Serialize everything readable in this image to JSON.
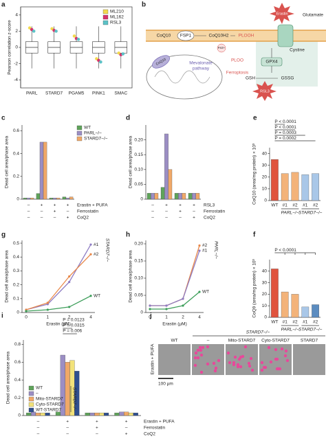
{
  "panel_labels": [
    "a",
    "b",
    "c",
    "d",
    "e",
    "f",
    "g",
    "h",
    "i",
    "j"
  ],
  "diagram": {
    "erastin": "Erastin",
    "glutamate": "Glutamate",
    "coq10": "CoQ10",
    "fsp1": "FSP1",
    "coq10h2": "CoQ10H2",
    "plooh": "PLOOH",
    "mito_coq10": "CoQ10",
    "mevalonate": [
      "Mevalonate",
      "pathway"
    ],
    "fe": "Fe2+",
    "ploo": "PLOO",
    "ferroptosis": "Ferroptosis",
    "gpx4": "GPX4",
    "cystine": "Cystine",
    "gsh": "GSH",
    "gssg": "GSSG",
    "rsl3": "RSL3"
  },
  "micrographs": {
    "group_label": "STARD7−/−",
    "columns": [
      "WT",
      "–",
      "Mito-STARD7",
      "Cyto-STARD7",
      "STARD7"
    ],
    "row_label": "Erastin + PUFA",
    "scale_bar": "100 µm"
  },
  "chart_data": [
    {
      "type": "box",
      "y_label": "Pearson correlation z-score",
      "categories": [
        "PARL",
        "STARD7",
        "PGAM5",
        "PINK1",
        "SMAC"
      ],
      "whisker_low": [
        -2.6,
        -2.6,
        -2.6,
        -2.6,
        -2.6
      ],
      "q1": [
        -0.7,
        -0.7,
        -0.7,
        -0.7,
        -0.7
      ],
      "median": [
        0,
        0,
        0,
        0,
        0
      ],
      "q3": [
        0.7,
        0.7,
        0.7,
        0.7,
        0.7
      ],
      "whisker_high": [
        2.6,
        2.6,
        2.6,
        2.6,
        2.6
      ],
      "series": [
        {
          "name": "ML210",
          "color": "#f2d94e",
          "values": [
            2.4,
            2.3,
            1.4,
            -1.4,
            -0.7
          ]
        },
        {
          "name": "ML162",
          "color": "#d6336c",
          "values": [
            2.2,
            2.1,
            1.1,
            -1.6,
            -0.9
          ]
        },
        {
          "name": "RSL3",
          "color": "#5cc2c7",
          "values": [
            2.0,
            2.0,
            1.0,
            -1.8,
            -0.8
          ]
        }
      ],
      "ylim": [
        -5,
        5
      ],
      "yticks": [
        -4,
        -2,
        0,
        2,
        4
      ],
      "legend": "upper right"
    },
    {
      "type": "grouped_bar",
      "y_label": "Dead cell area/phase area",
      "series": [
        {
          "name": "WT",
          "color": "#5fa35a",
          "values": [
            0.01,
            0.05,
            0.01,
            0.02
          ]
        },
        {
          "name": "PARL−/−",
          "color": "#9b8ec4",
          "values": [
            0.01,
            0.5,
            0.01,
            0.01
          ]
        },
        {
          "name": "STARD7−/−",
          "color": "#f0a868",
          "values": [
            0.01,
            0.5,
            0.01,
            0.02
          ]
        }
      ],
      "ylim": [
        0,
        0.65
      ],
      "yticks": [
        0,
        0.2,
        0.4,
        0.6
      ],
      "treatments": [
        {
          "name": "Erastin + PUFA",
          "marks": [
            "–",
            "+",
            "+",
            "+"
          ]
        },
        {
          "name": "Ferrostatin",
          "marks": [
            "–",
            "–",
            "+",
            "–"
          ]
        },
        {
          "name": "CoQ2",
          "marks": [
            "–",
            "–",
            "–",
            "+"
          ]
        }
      ],
      "legend": "right"
    },
    {
      "type": "grouped_bar",
      "y_label": "Dead cell area/phase area",
      "series": [
        {
          "color": "#5fa35a",
          "values": [
            0.02,
            0.04,
            0.02,
            0.02
          ]
        },
        {
          "color": "#9b8ec4",
          "values": [
            0.02,
            0.22,
            0.02,
            0.02
          ]
        },
        {
          "color": "#f0a868",
          "values": [
            0.02,
            0.1,
            0.02,
            0.02
          ]
        }
      ],
      "ylim": [
        0,
        0.25
      ],
      "yticks": [
        0,
        0.05,
        {
          "value": 0.1,
          "label": "0.10"
        },
        0.15,
        {
          "value": 0.2,
          "label": "0.20"
        }
      ],
      "treatments": [
        {
          "name": "RSL3",
          "marks": [
            "–",
            "+",
            "+",
            "+"
          ]
        },
        {
          "name": "Ferrostatin",
          "marks": [
            "–",
            "–",
            "+",
            "–"
          ]
        },
        {
          "name": "CoQ2",
          "marks": [
            "–",
            "–",
            "–",
            "+"
          ]
        }
      ]
    },
    {
      "type": "bar",
      "y_label": "CoQ10 (area/mg protein) × 10³",
      "categories": [
        "WT",
        "#1",
        "#2",
        "#1",
        "#2"
      ],
      "group_labels": [
        "PARL−/−",
        "STARD7−/−"
      ],
      "values": [
        35,
        23,
        24,
        22,
        23
      ],
      "colors": [
        "#e0533d",
        "#f3b37a",
        "#f3b37a",
        "#a9c7e8",
        "#a9c7e8"
      ],
      "ylim": [
        0,
        45
      ],
      "yticks": [
        0,
        10,
        20,
        30,
        40
      ],
      "p_values": [
        "P < 0.0001",
        "P < 0.0001",
        "P = 0.0003",
        "P = 0.0002"
      ]
    },
    {
      "type": "bar",
      "y_label": "CoQ9 (area/mg protein) × 10³",
      "categories": [
        "WT",
        "#1",
        "#2",
        "#1",
        "#2"
      ],
      "group_labels": [
        "PARL−/−",
        "STARD7−/−"
      ],
      "values": [
        42,
        22,
        20,
        9,
        11
      ],
      "colors": [
        "#e0533d",
        "#f3b37a",
        "#f3b37a",
        "#a9c7e8",
        "#5b8cc0"
      ],
      "ylim": [
        0,
        50
      ],
      "yticks": [
        0,
        10,
        20,
        30,
        40
      ],
      "p_values": [
        "P < 0.0001"
      ]
    },
    {
      "type": "line",
      "y_label": "Dead cell area/phase area",
      "x_label": "Erastin (µM)",
      "categories": [
        "0",
        "1",
        "2",
        "4"
      ],
      "series": [
        {
          "name": "#1",
          "color": "#8e7cc3",
          "values": [
            0.02,
            0.06,
            0.22,
            0.49
          ]
        },
        {
          "name": "#2",
          "color": "#e8884a",
          "values": [
            0.02,
            0.07,
            0.26,
            0.42
          ]
        },
        {
          "name": "WT",
          "color": "#3d9e5a",
          "values": [
            0.01,
            0.02,
            0.04,
            0.12
          ]
        }
      ],
      "annotation": "STARD7−/−",
      "ylim": [
        0,
        0.52
      ],
      "yticks": [
        0,
        0.1,
        0.2,
        0.3,
        0.4,
        0.5
      ]
    },
    {
      "type": "line",
      "y_label": "Dead cell area/phase area",
      "x_label": "Erastin (µM)",
      "categories": [
        "0",
        "1",
        "2",
        "4"
      ],
      "series": [
        {
          "name": "#2",
          "color": "#e8884a",
          "values": [
            0.02,
            0.02,
            0.04,
            0.195
          ]
        },
        {
          "name": "#1",
          "color": "#8e7cc3",
          "values": [
            0.02,
            0.02,
            0.04,
            0.18
          ]
        },
        {
          "name": "WT",
          "color": "#3d9e5a",
          "values": [
            0.01,
            0.01,
            0.02,
            0.06
          ]
        }
      ],
      "annotation": "PARL−/−",
      "ylim": [
        0,
        0.21
      ],
      "yticks": [
        0,
        0.05,
        {
          "value": 0.1,
          "label": "0.10"
        },
        0.15,
        {
          "value": 0.2,
          "label": "0.20"
        }
      ]
    },
    {
      "type": "grouped_bar",
      "y_label": "Dead cell area/phase area",
      "series": [
        {
          "name": "WT",
          "color": "#5fa35a",
          "values": [
            0.03,
            0.04,
            0.03,
            0.03
          ]
        },
        {
          "name": "–",
          "color": "#9b8ec4",
          "values": [
            0.04,
            0.68,
            0.03,
            0.04
          ]
        },
        {
          "name": "Mito-STARD7",
          "color": "#f0a868",
          "values": [
            0.03,
            0.6,
            0.03,
            0.04
          ]
        },
        {
          "name": "Cyto-STARD7",
          "color": "#f2e27a",
          "values": [
            0.03,
            0.62,
            0.03,
            0.03
          ]
        },
        {
          "name": "WT-STARD7",
          "color": "#2f4f8f",
          "values": [
            0.03,
            0.5,
            0.03,
            0.03
          ]
        }
      ],
      "ylim": [
        0,
        0.85
      ],
      "yticks": [
        0,
        0.2,
        0.4,
        0.6,
        0.8
      ],
      "treatments": [
        {
          "name": "Erastin + PUFA",
          "marks": [
            "–",
            "+",
            "+",
            "+"
          ]
        },
        {
          "name": "Ferrostatin",
          "marks": [
            "–",
            "–",
            "+",
            "–"
          ]
        },
        {
          "name": "CoQ2",
          "marks": [
            "–",
            "–",
            "–",
            "+"
          ]
        }
      ],
      "p_values": [
        "P = 0.0123",
        "P = 0.0315",
        "P = 0.006"
      ],
      "annotation": "STARD7−/−",
      "legend": "lower left"
    }
  ]
}
